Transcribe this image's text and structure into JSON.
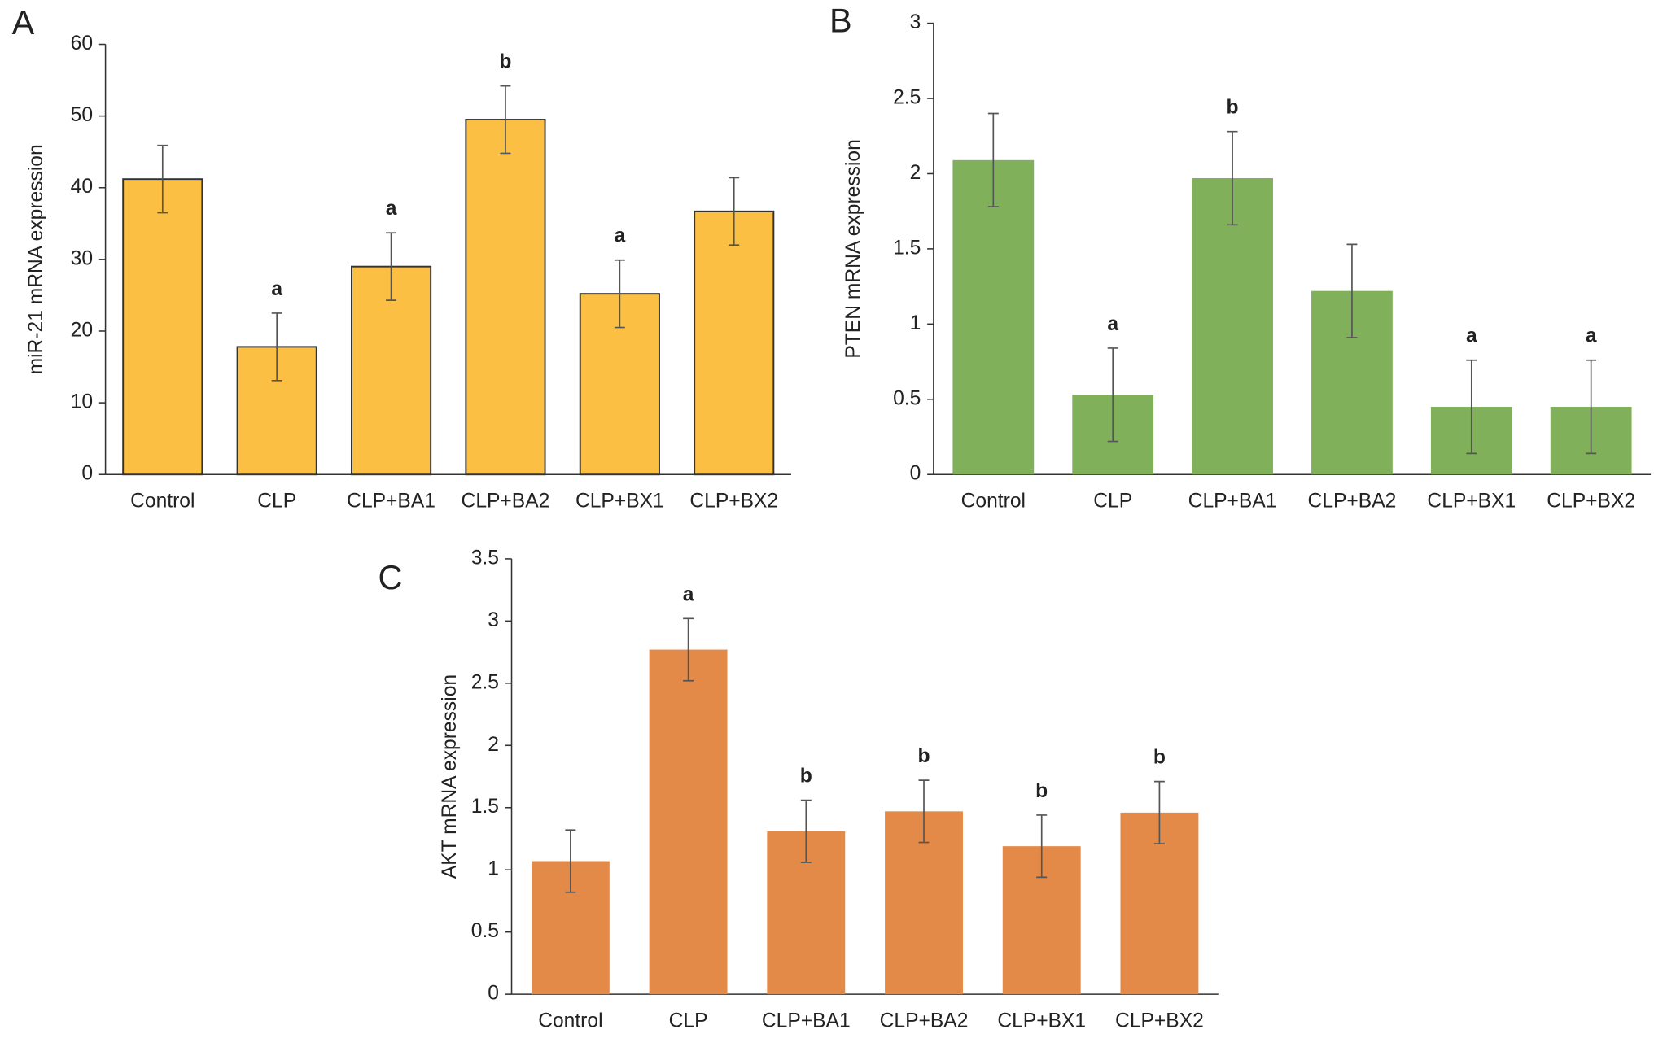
{
  "chart_data": [
    {
      "type": "bar",
      "panel": "A",
      "ylabel": "miR-21 mRNA expression",
      "categories": [
        "Control",
        "CLP",
        "CLP+BA1",
        "CLP+BA2",
        "CLP+BX1",
        "CLP+BX2"
      ],
      "values": [
        41.2,
        17.8,
        29,
        49.5,
        25.2,
        36.7
      ],
      "errors": [
        4.7,
        4.7,
        4.7,
        4.7,
        4.7,
        4.7
      ],
      "annotations": [
        null,
        "a",
        "a",
        "b",
        "a",
        null
      ],
      "color": "#fbc043",
      "edgecolor": "#333333",
      "ylim": [
        0,
        60
      ],
      "yticks": [
        0,
        10,
        20,
        30,
        40,
        50,
        60
      ]
    },
    {
      "type": "bar",
      "panel": "B",
      "ylabel": "PTEN mRNA expression",
      "categories": [
        "Control",
        "CLP",
        "CLP+BA1",
        "CLP+BA2",
        "CLP+BX1",
        "CLP+BX2"
      ],
      "values": [
        2.09,
        0.53,
        1.97,
        1.22,
        0.45,
        0.45
      ],
      "errors": [
        0.31,
        0.31,
        0.31,
        0.31,
        0.31,
        0.31
      ],
      "annotations": [
        null,
        "a",
        "b",
        null,
        "a",
        "a"
      ],
      "color": "#80b05a",
      "edgecolor": null,
      "ylim": [
        0,
        3
      ],
      "yticks": [
        0,
        0.5,
        1,
        1.5,
        2,
        2.5,
        3
      ]
    },
    {
      "type": "bar",
      "panel": "C",
      "ylabel": "AKT mRNA expression",
      "categories": [
        "Control",
        "CLP",
        "CLP+BA1",
        "CLP+BA2",
        "CLP+BX1",
        "CLP+BX2"
      ],
      "values": [
        1.07,
        2.77,
        1.31,
        1.47,
        1.19,
        1.46
      ],
      "errors": [
        0.25,
        0.25,
        0.25,
        0.25,
        0.25,
        0.25
      ],
      "annotations": [
        null,
        "a",
        "b",
        "b",
        "b",
        "b"
      ],
      "color": "#e48a49",
      "edgecolor": null,
      "ylim": [
        0,
        3.5
      ],
      "yticks": [
        0,
        0.5,
        1,
        1.5,
        2,
        2.5,
        3,
        3.5
      ]
    }
  ]
}
